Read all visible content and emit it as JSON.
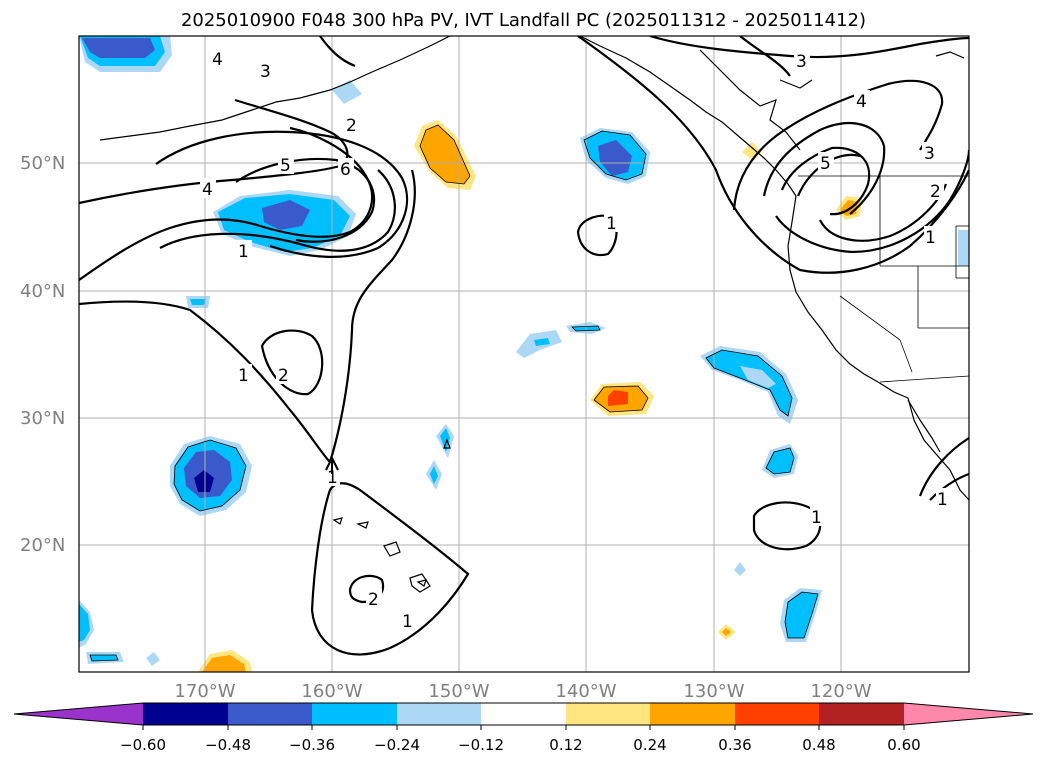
{
  "title": "2025010900 F048 300 hPa PV, IVT Landfall PC (2025011312 - 2025011412)",
  "lat_labels": [
    "50°N",
    "40°N",
    "30°N",
    "20°N"
  ],
  "lon_labels": [
    "170°W",
    "160°W",
    "150°W",
    "140°W",
    "130°W",
    "120°W"
  ],
  "contour_labels": [
    "4",
    "3",
    "2",
    "5",
    "6",
    "4",
    "1",
    "2",
    "1",
    "1",
    "1",
    "2",
    "1",
    "3",
    "4",
    "5",
    "3",
    "2",
    "1",
    "1",
    "1"
  ],
  "colorbar": {
    "ticks": [
      "−0.60",
      "−0.48",
      "−0.36",
      "−0.24",
      "−0.12",
      "0.12",
      "0.24",
      "0.36",
      "0.48",
      "0.60"
    ],
    "colors": [
      "#9933cc",
      "#000090",
      "#3a5acc",
      "#00bfff",
      "#add8f5",
      "#ffffff",
      "#ffe680",
      "#ffa500",
      "#ff4000",
      "#b22222",
      "#ff88aa"
    ]
  }
}
